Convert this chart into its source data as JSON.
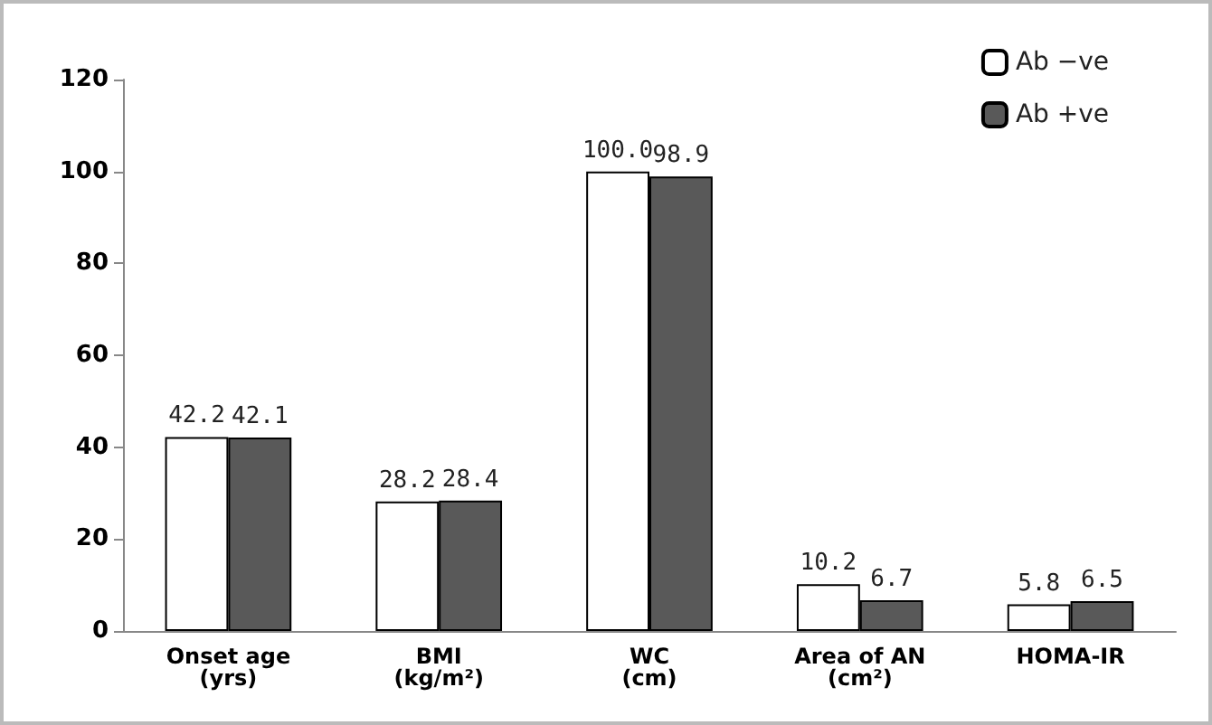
{
  "chart_data": {
    "type": "bar",
    "categories": [
      "Onset age\n(yrs)",
      "BMI\n(kg/m²)",
      "WC\n(cm)",
      "Area of AN\n(cm²)",
      "HOMA-IR"
    ],
    "series": [
      {
        "name": "Ab −ve",
        "color": "#ffffff",
        "values": [
          42.2,
          28.2,
          100.0,
          10.2,
          5.8
        ],
        "value_labels": [
          "42.2",
          "28.2",
          "100.0",
          "10.2",
          "5.8"
        ]
      },
      {
        "name": "Ab +ve",
        "color": "#595959",
        "values": [
          42.1,
          28.4,
          98.9,
          6.7,
          6.5
        ],
        "value_labels": [
          "42.1",
          "28.4",
          "98.9",
          "6.7",
          "6.5"
        ]
      }
    ],
    "ylim": [
      0,
      120
    ],
    "yticks": [
      0,
      20,
      40,
      60,
      80,
      100,
      120
    ],
    "grid": false,
    "legend": "top right"
  }
}
